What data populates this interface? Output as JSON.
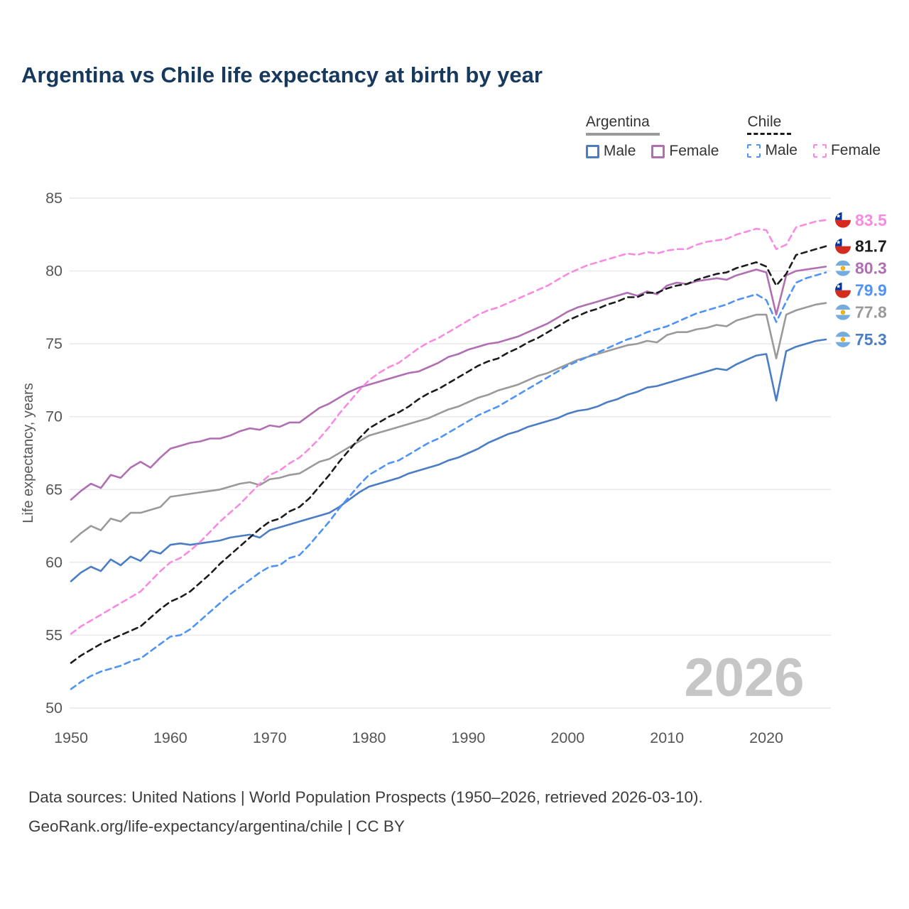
{
  "title": "Argentina vs Chile life expectancy at birth by year",
  "watermark": "2026",
  "legend": {
    "groups": [
      {
        "id": "argentina",
        "label": "Argentina",
        "line_style": "solid",
        "items": [
          {
            "label": "Male",
            "style": "solid"
          },
          {
            "label": "Female",
            "style": "solid"
          }
        ]
      },
      {
        "id": "chile",
        "label": "Chile",
        "line_style": "dashed",
        "items": [
          {
            "label": "Male",
            "style": "dashed"
          },
          {
            "label": "Female",
            "style": "dashed"
          }
        ]
      }
    ]
  },
  "footer": {
    "line1": "Data sources: United Nations | World Population Prospects (1950–2026, retrieved 2026-03-10).",
    "line2": "GeoRank.org/life-expectancy/argentina/chile | CC BY"
  },
  "colors": {
    "argentina_male": "#4a7dc4",
    "argentina_female": "#b06fb3",
    "argentina_both": "#9a9a9a",
    "chile_male": "#4e93f5",
    "chile_female": "#f98ae3",
    "chile_both": "#1c1c1c",
    "title": "#16395d",
    "grid": "#e7e7e7",
    "axis_text": "#565656",
    "watermark": "#c6c6c6"
  },
  "chart_data": {
    "type": "line",
    "title": "Argentina vs Chile life expectancy at birth by year",
    "xlabel": "",
    "ylabel": "Life expectancy, years",
    "xlim": [
      1950,
      2026
    ],
    "ylim": [
      50,
      85
    ],
    "x_ticks": [
      1950,
      1960,
      1970,
      1980,
      1990,
      2000,
      2010,
      2020
    ],
    "y_ticks": [
      50,
      55,
      60,
      65,
      70,
      75,
      80,
      85
    ],
    "grid": "horizontal",
    "legend_position": "top-right",
    "x": [
      1950,
      1951,
      1952,
      1953,
      1954,
      1955,
      1956,
      1957,
      1958,
      1959,
      1960,
      1961,
      1962,
      1963,
      1964,
      1965,
      1966,
      1967,
      1968,
      1969,
      1970,
      1971,
      1972,
      1973,
      1974,
      1975,
      1976,
      1977,
      1978,
      1979,
      1980,
      1981,
      1982,
      1983,
      1984,
      1985,
      1986,
      1987,
      1988,
      1989,
      1990,
      1991,
      1992,
      1993,
      1994,
      1995,
      1996,
      1997,
      1998,
      1999,
      2000,
      2001,
      2002,
      2003,
      2004,
      2005,
      2006,
      2007,
      2008,
      2009,
      2010,
      2011,
      2012,
      2013,
      2014,
      2015,
      2016,
      2017,
      2018,
      2019,
      2020,
      2021,
      2022,
      2023,
      2024,
      2025,
      2026
    ],
    "series": [
      {
        "id": "argentina-both",
        "name": "Argentina both sexes",
        "country": "argentina",
        "sex": "both",
        "color": "#9a9a9a",
        "dashed": false,
        "end_label": "77.8",
        "flag": "argentina",
        "values": [
          61.4,
          62.0,
          62.5,
          62.2,
          63.0,
          62.8,
          63.4,
          63.4,
          63.6,
          63.8,
          64.5,
          64.6,
          64.7,
          64.8,
          64.9,
          65.0,
          65.2,
          65.4,
          65.5,
          65.3,
          65.7,
          65.8,
          66.0,
          66.1,
          66.5,
          66.9,
          67.1,
          67.5,
          67.9,
          68.3,
          68.7,
          68.9,
          69.1,
          69.3,
          69.5,
          69.7,
          69.9,
          70.2,
          70.5,
          70.7,
          71.0,
          71.3,
          71.5,
          71.8,
          72.0,
          72.2,
          72.5,
          72.8,
          73.0,
          73.3,
          73.6,
          73.9,
          74.1,
          74.3,
          74.5,
          74.7,
          74.9,
          75.0,
          75.2,
          75.1,
          75.6,
          75.8,
          75.8,
          76.0,
          76.1,
          76.3,
          76.2,
          76.6,
          76.8,
          77.0,
          77.0,
          74.0,
          77.0,
          77.3,
          77.5,
          77.7,
          77.8
        ]
      },
      {
        "id": "argentina-male",
        "name": "Argentina male",
        "country": "argentina",
        "sex": "male",
        "color": "#4a7dc4",
        "dashed": false,
        "end_label": "75.3",
        "flag": "argentina",
        "values": [
          58.7,
          59.3,
          59.7,
          59.4,
          60.2,
          59.8,
          60.4,
          60.1,
          60.8,
          60.6,
          61.2,
          61.3,
          61.2,
          61.3,
          61.4,
          61.5,
          61.7,
          61.8,
          61.9,
          61.7,
          62.2,
          62.4,
          62.6,
          62.8,
          63.0,
          63.2,
          63.4,
          63.8,
          64.3,
          64.8,
          65.2,
          65.4,
          65.6,
          65.8,
          66.1,
          66.3,
          66.5,
          66.7,
          67.0,
          67.2,
          67.5,
          67.8,
          68.2,
          68.5,
          68.8,
          69.0,
          69.3,
          69.5,
          69.7,
          69.9,
          70.2,
          70.4,
          70.5,
          70.7,
          71.0,
          71.2,
          71.5,
          71.7,
          72.0,
          72.1,
          72.3,
          72.5,
          72.7,
          72.9,
          73.1,
          73.3,
          73.2,
          73.6,
          73.9,
          74.2,
          74.3,
          71.1,
          74.5,
          74.8,
          75.0,
          75.2,
          75.3
        ]
      },
      {
        "id": "argentina-female",
        "name": "Argentina female",
        "country": "argentina",
        "sex": "female",
        "color": "#b06fb3",
        "dashed": false,
        "end_label": "80.3",
        "flag": "argentina",
        "values": [
          64.3,
          64.9,
          65.4,
          65.1,
          66.0,
          65.8,
          66.5,
          66.9,
          66.5,
          67.2,
          67.8,
          68.0,
          68.2,
          68.3,
          68.5,
          68.5,
          68.7,
          69.0,
          69.2,
          69.1,
          69.4,
          69.3,
          69.6,
          69.6,
          70.1,
          70.6,
          70.9,
          71.3,
          71.7,
          72.0,
          72.2,
          72.4,
          72.6,
          72.8,
          73.0,
          73.1,
          73.4,
          73.7,
          74.1,
          74.3,
          74.6,
          74.8,
          75.0,
          75.1,
          75.3,
          75.5,
          75.8,
          76.1,
          76.4,
          76.8,
          77.2,
          77.5,
          77.7,
          77.9,
          78.1,
          78.3,
          78.5,
          78.3,
          78.6,
          78.4,
          79.0,
          79.2,
          79.1,
          79.3,
          79.4,
          79.5,
          79.4,
          79.7,
          79.9,
          80.1,
          79.9,
          77.0,
          79.7,
          80.0,
          80.1,
          80.2,
          80.3
        ]
      },
      {
        "id": "chile-male",
        "name": "Chile male",
        "country": "chile",
        "sex": "male",
        "color": "#4e93f5",
        "dashed": true,
        "end_label": "79.9",
        "flag": "chile",
        "values": [
          51.3,
          51.8,
          52.2,
          52.5,
          52.7,
          52.9,
          53.2,
          53.4,
          53.9,
          54.4,
          54.9,
          55.0,
          55.4,
          56.0,
          56.6,
          57.2,
          57.8,
          58.3,
          58.8,
          59.3,
          59.7,
          59.8,
          60.3,
          60.5,
          61.2,
          62.0,
          62.8,
          63.7,
          64.5,
          65.3,
          66.0,
          66.4,
          66.8,
          67.0,
          67.4,
          67.8,
          68.2,
          68.5,
          68.9,
          69.3,
          69.7,
          70.1,
          70.4,
          70.7,
          71.1,
          71.5,
          71.9,
          72.3,
          72.7,
          73.1,
          73.5,
          73.8,
          74.1,
          74.4,
          74.7,
          75.0,
          75.3,
          75.5,
          75.8,
          76.0,
          76.2,
          76.5,
          76.8,
          77.1,
          77.3,
          77.5,
          77.7,
          78.0,
          78.2,
          78.4,
          78.0,
          76.5,
          77.9,
          79.2,
          79.5,
          79.7,
          79.9
        ]
      },
      {
        "id": "chile-both",
        "name": "Chile both sexes",
        "country": "chile",
        "sex": "both",
        "color": "#1c1c1c",
        "dashed": true,
        "end_label": "81.7",
        "flag": "chile",
        "values": [
          53.1,
          53.6,
          54.0,
          54.4,
          54.7,
          55.0,
          55.3,
          55.6,
          56.2,
          56.8,
          57.3,
          57.6,
          58.0,
          58.6,
          59.2,
          59.9,
          60.5,
          61.1,
          61.7,
          62.3,
          62.8,
          63.0,
          63.5,
          63.8,
          64.4,
          65.2,
          66.0,
          66.9,
          67.7,
          68.5,
          69.2,
          69.6,
          70.0,
          70.3,
          70.7,
          71.2,
          71.6,
          71.9,
          72.3,
          72.7,
          73.1,
          73.5,
          73.8,
          74.0,
          74.4,
          74.7,
          75.1,
          75.4,
          75.8,
          76.2,
          76.6,
          76.9,
          77.2,
          77.4,
          77.7,
          77.9,
          78.2,
          78.2,
          78.5,
          78.5,
          78.8,
          79.0,
          79.1,
          79.4,
          79.6,
          79.8,
          79.9,
          80.2,
          80.4,
          80.6,
          80.3,
          79.0,
          79.8,
          81.1,
          81.3,
          81.5,
          81.7
        ]
      },
      {
        "id": "chile-female",
        "name": "Chile female",
        "country": "chile",
        "sex": "female",
        "color": "#f98ae3",
        "dashed": true,
        "end_label": "83.5",
        "flag": "chile",
        "values": [
          55.1,
          55.6,
          56.0,
          56.4,
          56.8,
          57.2,
          57.6,
          58.0,
          58.7,
          59.4,
          60.0,
          60.3,
          60.8,
          61.4,
          62.1,
          62.8,
          63.4,
          64.0,
          64.7,
          65.4,
          66.0,
          66.3,
          66.8,
          67.2,
          67.8,
          68.5,
          69.3,
          70.2,
          71.0,
          71.8,
          72.5,
          73.0,
          73.4,
          73.7,
          74.2,
          74.7,
          75.1,
          75.4,
          75.8,
          76.2,
          76.6,
          77.0,
          77.3,
          77.5,
          77.8,
          78.1,
          78.4,
          78.7,
          79.0,
          79.4,
          79.8,
          80.1,
          80.4,
          80.6,
          80.8,
          81.0,
          81.2,
          81.1,
          81.3,
          81.2,
          81.4,
          81.5,
          81.5,
          81.8,
          82.0,
          82.1,
          82.2,
          82.5,
          82.7,
          82.9,
          82.8,
          81.5,
          81.8,
          83.0,
          83.2,
          83.4,
          83.5
        ]
      }
    ]
  }
}
